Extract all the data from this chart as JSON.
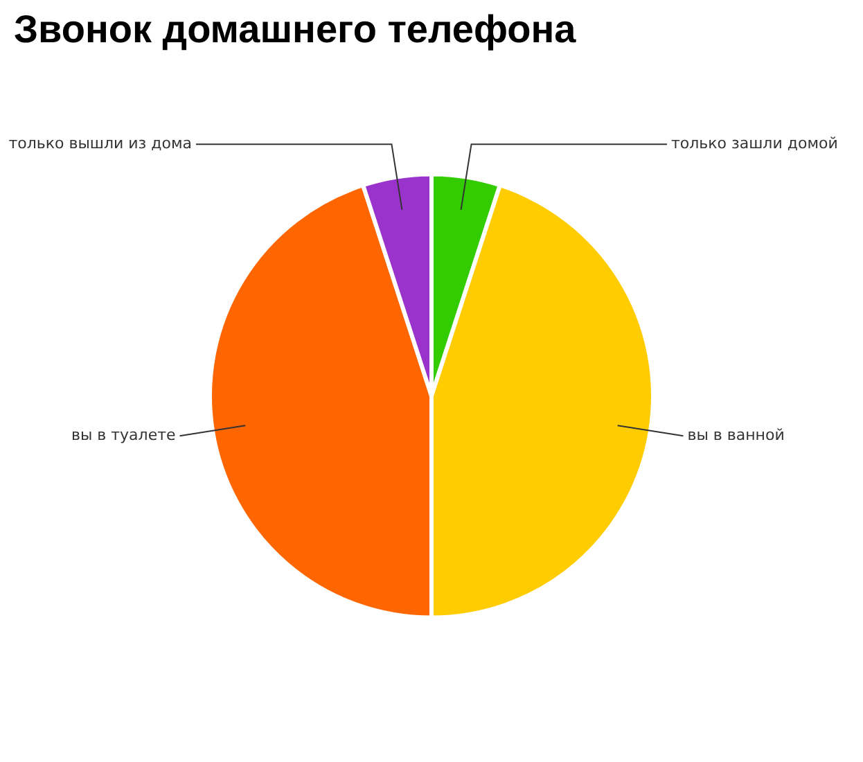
{
  "chart_data": {
    "type": "pie",
    "title": "Звонок домашнего телефона",
    "categories": [
      "только зашли домой",
      "вы в ванной",
      "вы в туалете",
      "только вышли из дома"
    ],
    "values": [
      5,
      45,
      45,
      5
    ],
    "colors": [
      "#33cc00",
      "#ffcc00",
      "#ff6600",
      "#9933cc"
    ],
    "legend": false
  }
}
